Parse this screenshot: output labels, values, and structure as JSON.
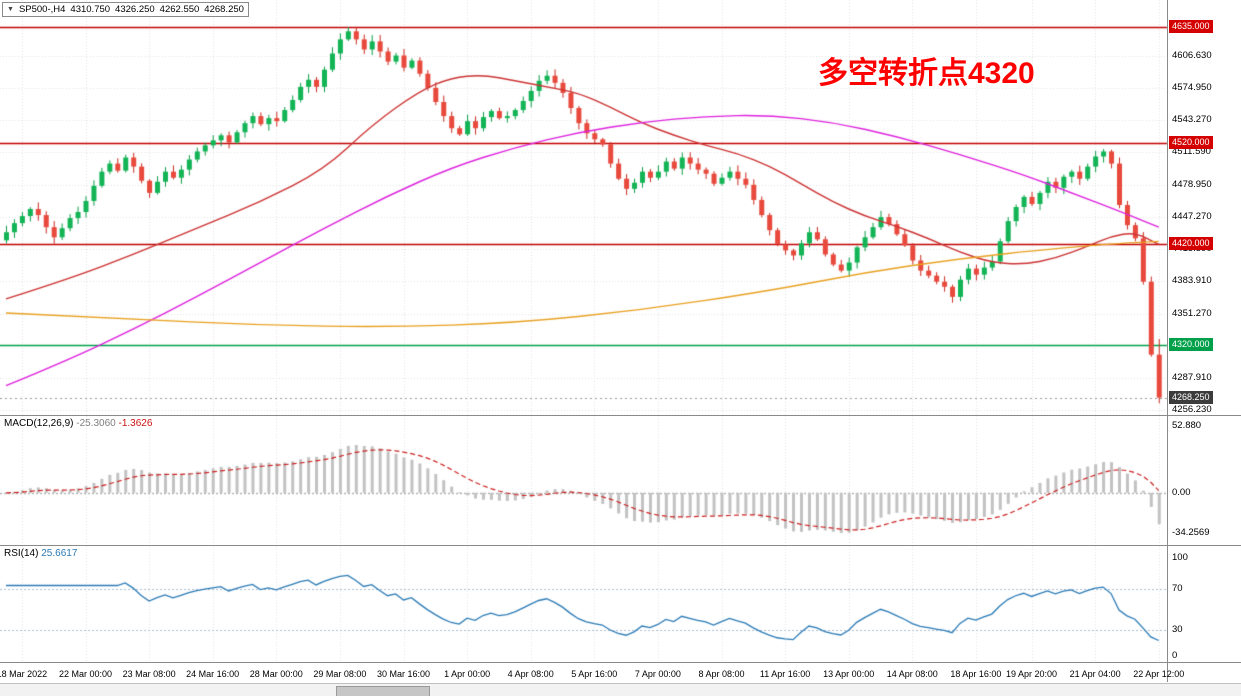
{
  "quote_bar": {
    "collapse_icon": "▼",
    "symbol": "SP500-,H4",
    "open": "4310.750",
    "high": "4326.250",
    "low": "4262.550",
    "close": "4268.250"
  },
  "annotation": {
    "text": "多空转折点4320",
    "color": "#ff0000"
  },
  "price_axis": {
    "ticks": [
      {
        "label": "4606.630",
        "value": 4606.63
      },
      {
        "label": "4574.950",
        "value": 4574.95
      },
      {
        "label": "4543.270",
        "value": 4543.27
      },
      {
        "label": "4511.590",
        "value": 4511.59
      },
      {
        "label": "4478.950",
        "value": 4478.95
      },
      {
        "label": "4447.270",
        "value": 4447.27
      },
      {
        "label": "4415.590",
        "value": 4415.59
      },
      {
        "label": "4383.910",
        "value": 4383.91
      },
      {
        "label": "4351.270",
        "value": 4351.27
      },
      {
        "label": "4287.910",
        "value": 4287.91
      },
      {
        "label": "4256.230",
        "value": 4256.23
      }
    ],
    "level_labels": [
      {
        "label": "4635.000",
        "value": 4635.0,
        "bg": "#d40000"
      },
      {
        "label": "4520.000",
        "value": 4520.0,
        "bg": "#d40000"
      },
      {
        "label": "4420.000",
        "value": 4420.0,
        "bg": "#d40000"
      },
      {
        "label": "4320.000",
        "value": 4320.0,
        "bg": "#00a04a"
      },
      {
        "label": "4268.250",
        "value": 4268.25,
        "bg": "#3c3c3c"
      }
    ]
  },
  "time_axis": {
    "labels": [
      {
        "text": "18 Mar 2022",
        "index": 2
      },
      {
        "text": "22 Mar 00:00",
        "index": 10
      },
      {
        "text": "23 Mar 08:00",
        "index": 18
      },
      {
        "text": "24 Mar 16:00",
        "index": 26
      },
      {
        "text": "28 Mar 00:00",
        "index": 34
      },
      {
        "text": "29 Mar 08:00",
        "index": 42
      },
      {
        "text": "30 Mar 16:00",
        "index": 50
      },
      {
        "text": "1 Apr 00:00",
        "index": 58
      },
      {
        "text": "4 Apr 08:00",
        "index": 66
      },
      {
        "text": "5 Apr 16:00",
        "index": 74
      },
      {
        "text": "7 Apr 00:00",
        "index": 82
      },
      {
        "text": "8 Apr 08:00",
        "index": 90
      },
      {
        "text": "11 Apr 16:00",
        "index": 98
      },
      {
        "text": "13 Apr 00:00",
        "index": 106
      },
      {
        "text": "14 Apr 08:00",
        "index": 114
      },
      {
        "text": "18 Apr 16:00",
        "index": 122
      },
      {
        "text": "19 Apr 20:00",
        "index": 129
      },
      {
        "text": "21 Apr 04:00",
        "index": 137
      },
      {
        "text": "22 Apr 12:00",
        "index": 145
      }
    ]
  },
  "chart_data": {
    "type": "candlestick",
    "symbol": "SP500-",
    "timeframe": "H4",
    "price_min": 4251,
    "price_max": 4662,
    "first_open": 4424,
    "closes": [
      4432,
      4441,
      4448,
      4455,
      4449,
      4437,
      4427,
      4436,
      4446,
      4452,
      4463,
      4478,
      4492,
      4500,
      4493,
      4506,
      4497,
      4483,
      4471,
      4482,
      4492,
      4486,
      4494,
      4504,
      4512,
      4518,
      4523,
      4528,
      4521,
      4531,
      4540,
      4547,
      4539,
      4545,
      4542,
      4553,
      4563,
      4576,
      4583,
      4576,
      4593,
      4609,
      4623,
      4631,
      4623,
      4613,
      4621,
      4611,
      4601,
      4607,
      4595,
      4602,
      4589,
      4575,
      4561,
      4547,
      4535,
      4529,
      4542,
      4535,
      4546,
      4552,
      4545,
      4547,
      4553,
      4562,
      4572,
      4582,
      4587,
      4580,
      4570,
      4555,
      4540,
      4530,
      4524,
      4519,
      4500,
      4485,
      4475,
      4481,
      4492,
      4486,
      4492,
      4502,
      4495,
      4506,
      4500,
      4494,
      4490,
      4480,
      4486,
      4492,
      4485,
      4479,
      4464,
      4449,
      4434,
      4420,
      4414,
      4409,
      4421,
      4432,
      4425,
      4410,
      4400,
      4394,
      4402,
      4417,
      4427,
      4437,
      4447,
      4440,
      4430,
      4419,
      4404,
      4394,
      4389,
      4383,
      4378,
      4368,
      4385,
      4396,
      4390,
      4397,
      4403,
      4423,
      4443,
      4457,
      4467,
      4460,
      4471,
      4482,
      4476,
      4487,
      4492,
      4485,
      4497,
      4507,
      4512,
      4500,
      4459,
      4439,
      4426,
      4383,
      4310.75,
      4268.25
    ],
    "current_ohlc": {
      "open": 4310.75,
      "high": 4326.25,
      "low": 4262.55,
      "close": 4268.25
    },
    "levels": [
      {
        "value": 4635.0,
        "color": "#c00000"
      },
      {
        "value": 4520.0,
        "color": "#c00000"
      },
      {
        "value": 4420.0,
        "color": "#c00000"
      },
      {
        "value": 4320.0,
        "color": "#00a04a"
      }
    ],
    "up_color": "#12b455",
    "down_color": "#e8493c",
    "moving_averages": [
      {
        "name": "ma-fast-red",
        "color": "#cc3333",
        "points": [
          [
            0,
            4366
          ],
          [
            8,
            4386
          ],
          [
            16,
            4410
          ],
          [
            24,
            4436
          ],
          [
            32,
            4462
          ],
          [
            40,
            4494
          ],
          [
            46,
            4538
          ],
          [
            52,
            4572
          ],
          [
            56,
            4585
          ],
          [
            60,
            4588
          ],
          [
            64,
            4582
          ],
          [
            68,
            4576
          ],
          [
            72,
            4570
          ],
          [
            76,
            4556
          ],
          [
            80,
            4540
          ],
          [
            84,
            4528
          ],
          [
            88,
            4518
          ],
          [
            92,
            4510
          ],
          [
            96,
            4498
          ],
          [
            100,
            4480
          ],
          [
            104,
            4462
          ],
          [
            108,
            4448
          ],
          [
            112,
            4438
          ],
          [
            116,
            4426
          ],
          [
            120,
            4412
          ],
          [
            124,
            4402
          ],
          [
            128,
            4400
          ],
          [
            132,
            4406
          ],
          [
            136,
            4418
          ],
          [
            139,
            4428
          ],
          [
            142,
            4432
          ],
          [
            145,
            4420
          ]
        ]
      },
      {
        "name": "ma-mid-magenta",
        "color": "#dd22dd",
        "points": [
          [
            0,
            4280
          ],
          [
            8,
            4306
          ],
          [
            16,
            4336
          ],
          [
            24,
            4368
          ],
          [
            32,
            4402
          ],
          [
            40,
            4436
          ],
          [
            48,
            4468
          ],
          [
            56,
            4496
          ],
          [
            64,
            4516
          ],
          [
            72,
            4531
          ],
          [
            80,
            4541
          ],
          [
            88,
            4547
          ],
          [
            96,
            4548
          ],
          [
            104,
            4541
          ],
          [
            112,
            4527
          ],
          [
            120,
            4509
          ],
          [
            128,
            4489
          ],
          [
            134,
            4471
          ],
          [
            140,
            4453
          ],
          [
            145,
            4437
          ]
        ]
      },
      {
        "name": "ma-slow-orange",
        "color": "#e8a020",
        "points": [
          [
            0,
            4352
          ],
          [
            16,
            4346
          ],
          [
            32,
            4340
          ],
          [
            48,
            4338
          ],
          [
            64,
            4342
          ],
          [
            80,
            4355
          ],
          [
            96,
            4374
          ],
          [
            108,
            4392
          ],
          [
            120,
            4406
          ],
          [
            132,
            4416
          ],
          [
            140,
            4421
          ],
          [
            145,
            4423
          ]
        ]
      }
    ]
  },
  "macd_panel": {
    "name": "MACD(12,26,9)",
    "main_value": "-25.3060",
    "signal_value": "-1.3626",
    "axis_top": "52.880",
    "axis_zero": "0.00",
    "axis_bottom": "-34.2569",
    "histogram_color": "#c2c2c2",
    "signal_color": "#cc2222",
    "params": {
      "fast": 12,
      "slow": 26,
      "signal": 9
    }
  },
  "rsi_panel": {
    "name": "RSI(14)",
    "value": "25.6617",
    "period": 14,
    "axis": [
      "100",
      "70",
      "30",
      "0"
    ],
    "levels": [
      70,
      30
    ],
    "line_color": "#2a7ab5"
  }
}
